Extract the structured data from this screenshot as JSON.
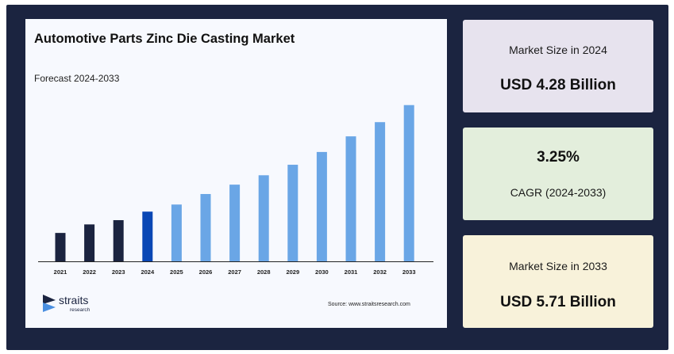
{
  "chart_data": {
    "type": "bar",
    "title": "Automotive Parts Zinc Die Casting Market",
    "subtitle": "Forecast 2024-2033",
    "categories": [
      "2021",
      "2022",
      "2023",
      "2024",
      "2025",
      "2026",
      "2027",
      "2028",
      "2029",
      "2030",
      "2031",
      "2032",
      "2033"
    ],
    "values": [
      1.0,
      1.3,
      1.45,
      1.75,
      2.0,
      2.37,
      2.7,
      3.03,
      3.4,
      3.85,
      4.4,
      4.9,
      5.5
    ],
    "values_note_units": "relative bar heights (no y-axis printed)",
    "ylim": [
      0,
      6.3
    ],
    "grid": false,
    "legend": "none",
    "colors": {
      "historical": "#1b2440",
      "base_year": "#0a47b5",
      "forecast": "#6aa6e6"
    },
    "highlight_index": 3,
    "historical_count": 3
  },
  "branding": {
    "logo_name": "straits",
    "logo_sub": "research",
    "source": "Source: www.straitsresearch.com"
  },
  "stats": {
    "size_2024_label": "Market Size in 2024",
    "size_2024_value": "USD 4.28 Billion",
    "cagr_value": "3.25%",
    "cagr_label": "CAGR (2024-2033)",
    "size_2033_label": "Market Size in 2033",
    "size_2033_value": "USD 5.71 Billion"
  }
}
